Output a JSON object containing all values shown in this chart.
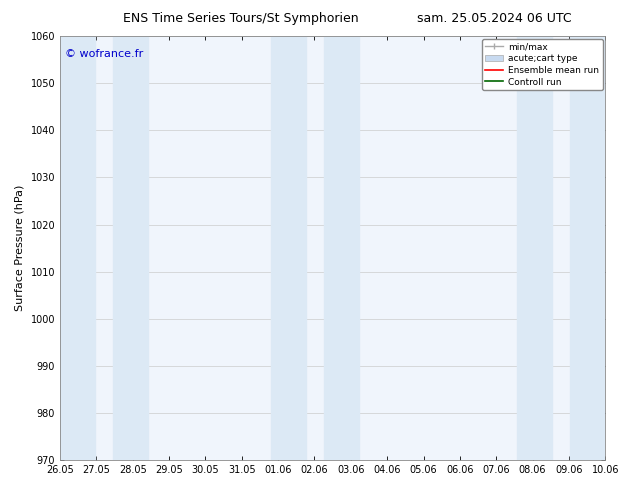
{
  "title_left": "ENS Time Series Tours/St Symphorien",
  "title_right": "sam. 25.05.2024 06 UTC",
  "ylabel": "Surface Pressure (hPa)",
  "ylim": [
    970,
    1060
  ],
  "yticks": [
    970,
    980,
    990,
    1000,
    1010,
    1020,
    1030,
    1040,
    1050,
    1060
  ],
  "xlim_start": 0.0,
  "xlim_end": 15.5,
  "xtick_labels": [
    "26.05",
    "27.05",
    "28.05",
    "29.05",
    "30.05",
    "31.05",
    "01.06",
    "02.06",
    "03.06",
    "04.06",
    "05.06",
    "06.06",
    "07.06",
    "08.06",
    "09.06",
    "10.06"
  ],
  "shaded_bands": [
    {
      "xstart": 0.0,
      "xend": 1.0
    },
    {
      "xstart": 1.5,
      "xend": 2.5
    },
    {
      "xstart": 6.0,
      "xend": 7.0
    },
    {
      "xstart": 7.5,
      "xend": 8.5
    },
    {
      "xstart": 13.0,
      "xend": 14.0
    },
    {
      "xstart": 14.5,
      "xend": 15.5
    }
  ],
  "shaded_color": "#dce9f5",
  "copyright_text": "© wofrance.fr",
  "copyright_color": "#0000cc",
  "bg_color": "#ffffff",
  "axes_bg_color": "#f0f5fc",
  "grid_color": "#cccccc",
  "legend_entries": [
    {
      "label": "min/max"
    },
    {
      "label": "acute;cart type"
    },
    {
      "label": "Ensemble mean run"
    },
    {
      "label": "Controll run"
    }
  ],
  "title_fontsize": 9,
  "label_fontsize": 8,
  "tick_fontsize": 7,
  "copyright_fontsize": 8
}
